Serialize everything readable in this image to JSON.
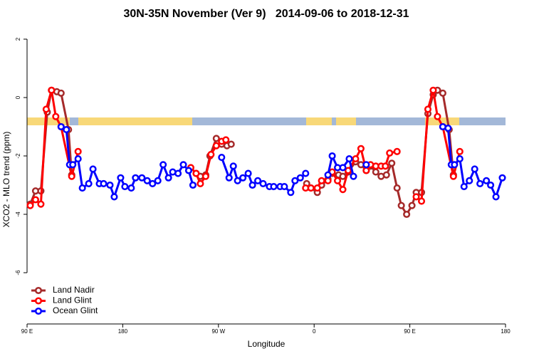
{
  "chart_data": {
    "type": "line",
    "title": "30N-35N November (Ver 9)   2014-09-06 to 2018-12-31",
    "x_label": "Longitude",
    "y_label": "XCO2 - MLO trend (ppm)",
    "xlim": [
      90,
      540
    ],
    "ylim": [
      -7.8,
      2.4
    ],
    "xticks": [
      {
        "value": 90,
        "label": "90 E"
      },
      180,
      {
        "value": 270,
        "label": "90 W"
      },
      {
        "value": 360,
        "label": "0"
      },
      {
        "value": 450,
        "label": "90 E"
      },
      {
        "value": 540,
        "label": "180"
      }
    ],
    "yticks": [
      2,
      0,
      -2,
      -4,
      -6
    ],
    "legend": "bottomleft",
    "series": [
      {
        "name": "Land Nadir",
        "color": "#a52a2a",
        "x": [
          93,
          98,
          103,
          109,
          113,
          118,
          122,
          129,
          132,
          null,
          249,
          253,
          258,
          262,
          268,
          273,
          278,
          282,
          null,
          353,
          357,
          363,
          367,
          373,
          377,
          383,
          387,
          392,
          399,
          404,
          409,
          413,
          418,
          423,
          428,
          433,
          438,
          442,
          447,
          452,
          456,
          461,
          467,
          472,
          476,
          481,
          487,
          491
        ],
        "values": [
          -3.65,
          -3.2,
          -3.2,
          -0.5,
          0.25,
          0.2,
          0.15,
          -1.1,
          -2.65,
          null,
          -2.6,
          -2.7,
          -2.65,
          -2.0,
          -1.4,
          -1.6,
          -1.65,
          -1.6,
          null,
          -2.95,
          -3.1,
          -3.25,
          -3.0,
          -2.8,
          -2.6,
          -2.65,
          -2.7,
          -2.55,
          -2.2,
          -2.3,
          -2.5,
          -2.35,
          -2.55,
          -2.7,
          -2.65,
          -2.25,
          -3.1,
          -3.7,
          -4.0,
          -3.7,
          -3.25,
          -3.25,
          -0.55,
          0.1,
          0.25,
          0.15,
          -1.1,
          -2.65
        ]
      },
      {
        "name": "Land Glint",
        "color": "#ff0000",
        "x": [
          93,
          98,
          103,
          108,
          113,
          117,
          122,
          132,
          138,
          null,
          244,
          249,
          253,
          258,
          263,
          268,
          273,
          277,
          null,
          352,
          357,
          363,
          367,
          373,
          377,
          382,
          387,
          392,
          399,
          404,
          409,
          413,
          418,
          423,
          427,
          431,
          438,
          null,
          456,
          461,
          467,
          472,
          476,
          481,
          491,
          497
        ],
        "values": [
          -3.7,
          -3.5,
          -3.65,
          -0.4,
          0.25,
          -0.65,
          -1.0,
          -2.7,
          -1.85,
          null,
          -2.4,
          -2.6,
          -2.95,
          -2.7,
          -1.95,
          -1.65,
          -1.5,
          -1.45,
          null,
          -3.1,
          -3.1,
          -3.1,
          -2.85,
          -2.85,
          -2.55,
          -2.85,
          -3.15,
          -2.5,
          -2.1,
          -1.75,
          -2.5,
          -2.3,
          -2.35,
          -2.35,
          -2.35,
          -1.9,
          -1.85,
          null,
          -3.4,
          -3.55,
          -0.4,
          0.25,
          -0.65,
          -1.0,
          -2.7,
          -1.85
        ]
      },
      {
        "name": "Ocean Glint",
        "color": "#0000ff",
        "x": [
          122,
          127,
          130,
          133,
          138,
          142,
          148,
          152,
          158,
          162,
          168,
          172,
          178,
          182,
          188,
          192,
          198,
          203,
          208,
          213,
          218,
          223,
          227,
          232,
          237,
          242,
          246,
          null,
          273,
          280,
          284,
          288,
          293,
          298,
          302,
          307,
          312,
          318,
          322,
          328,
          332,
          338,
          342,
          347,
          352,
          null,
          373,
          377,
          382,
          387,
          393,
          397,
          null,
          409,
          null,
          481,
          486,
          489,
          492,
          497,
          501,
          506,
          511,
          516,
          522,
          526,
          531,
          537
        ],
        "values": [
          -1.0,
          -1.1,
          -2.3,
          -2.3,
          -2.1,
          -3.1,
          -2.95,
          -2.45,
          -2.95,
          -2.95,
          -3.0,
          -3.4,
          -2.75,
          -3.05,
          -3.1,
          -2.75,
          -2.75,
          -2.85,
          -2.95,
          -2.85,
          -2.3,
          -2.75,
          -2.55,
          -2.6,
          -2.3,
          -2.5,
          -3.0,
          null,
          -2.05,
          -2.75,
          -2.35,
          -2.85,
          -2.75,
          -2.6,
          -3.0,
          -2.85,
          -2.95,
          -3.05,
          -3.05,
          -3.05,
          -3.05,
          -3.25,
          -2.85,
          -2.75,
          -2.6,
          null,
          -2.65,
          -2.0,
          -2.4,
          -2.4,
          -2.1,
          -2.7,
          null,
          -2.3,
          null,
          -1.0,
          -1.05,
          -2.3,
          -2.3,
          -2.1,
          -3.05,
          -2.85,
          -2.45,
          -2.95,
          -2.85,
          -3.0,
          -3.4,
          -2.75
        ]
      }
    ]
  }
}
